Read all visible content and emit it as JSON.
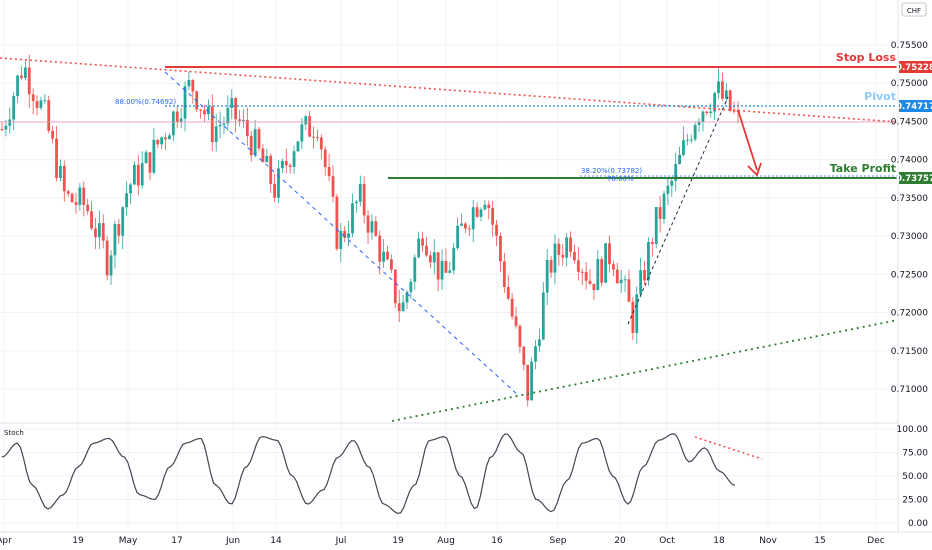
{
  "currency_label": "CHF",
  "colors": {
    "up": "#26a69a",
    "down": "#ef5350",
    "stop_loss": "#e53935",
    "pivot": "#42a5f5",
    "pivot_text": "#90caf9",
    "take_profit": "#2e7d32",
    "fib": "#2962ff",
    "stoch": "#434651"
  },
  "levels": {
    "stop_loss": {
      "title": "Stop Loss",
      "value": "0.75228"
    },
    "pivot": {
      "title": "Pivot",
      "value": "0.74717"
    },
    "take_profit": {
      "title": "Take Profit",
      "value": "0.73757"
    }
  },
  "fib_labels": {
    "fib88": "88.00%(0.74692)",
    "fib38": "38.20%(0.73782)",
    "fib78": "78.60%"
  },
  "stoch_label": "Stoch",
  "chart_data": [
    {
      "type": "candlestick",
      "title": "",
      "y_axis": {
        "ticks": [
          "0.75500",
          "0.75000",
          "0.74500",
          "0.74000",
          "0.73500",
          "0.73000",
          "0.72500",
          "0.72000",
          "0.71500",
          "0.71000"
        ],
        "ylim": [
          0.7075,
          0.7585
        ]
      },
      "x_axis": {
        "ticks": [
          "Apr",
          "19",
          "May",
          "17",
          "Jun",
          "14",
          "Jul",
          "19",
          "Aug",
          "16",
          "Sep",
          "20",
          "Oct",
          "18",
          "Nov",
          "15",
          "Dec"
        ]
      },
      "price_path": [
        [
          "Apr",
          0.744
        ],
        [
          "Apr",
          0.7525
        ],
        [
          "Apr",
          0.746
        ],
        [
          "Apr",
          0.735
        ],
        [
          "Apr",
          0.734
        ],
        [
          "19",
          0.727
        ],
        [
          "19",
          0.7365
        ],
        [
          "May",
          0.74
        ],
        [
          "May",
          0.745
        ],
        [
          "17",
          0.75
        ],
        [
          "17",
          0.744
        ],
        [
          "Jun",
          0.746
        ],
        [
          "Jun",
          0.742
        ],
        [
          "14",
          0.736
        ],
        [
          "14",
          0.743
        ],
        [
          "Jul",
          0.745
        ],
        [
          "Jul",
          0.729
        ],
        [
          "Jul",
          0.735
        ],
        [
          "19",
          0.728
        ],
        [
          "19",
          0.72
        ],
        [
          "19",
          0.731
        ],
        [
          "Aug",
          0.724
        ],
        [
          "Aug",
          0.732
        ],
        [
          "16",
          0.736
        ],
        [
          "16",
          0.723
        ],
        [
          "16",
          0.7095
        ],
        [
          "16",
          0.726
        ],
        [
          "Sep",
          0.73
        ],
        [
          "Sep",
          0.724
        ],
        [
          "20",
          0.728
        ],
        [
          "20",
          0.719
        ],
        [
          "20",
          0.731
        ],
        [
          "Oct",
          0.738
        ],
        [
          "Oct",
          0.746
        ],
        [
          "18",
          0.749
        ],
        [
          "18",
          0.745
        ]
      ],
      "annotations": [
        "Stop Loss 0.75228",
        "Pivot 0.74717",
        "Take Profit 0.73757",
        "88.00%(0.74692)",
        "38.20%(0.73782)",
        "78.60%"
      ]
    },
    {
      "type": "line",
      "title": "Stoch",
      "y_axis": {
        "ticks": [
          "100.00",
          "75.00",
          "50.00",
          "25.00",
          "0.00"
        ],
        "ylim": [
          0,
          100
        ]
      },
      "series": [
        {
          "values": [
            70,
            85,
            40,
            15,
            30,
            60,
            85,
            90,
            70,
            30,
            25,
            60,
            85,
            90,
            40,
            20,
            60,
            92,
            88,
            50,
            20,
            35,
            70,
            88,
            60,
            20,
            10,
            40,
            88,
            92,
            50,
            15,
            70,
            95,
            75,
            25,
            12,
            45,
            85,
            90,
            50,
            20,
            60,
            88,
            95,
            65,
            80,
            55,
            40
          ]
        }
      ]
    }
  ]
}
